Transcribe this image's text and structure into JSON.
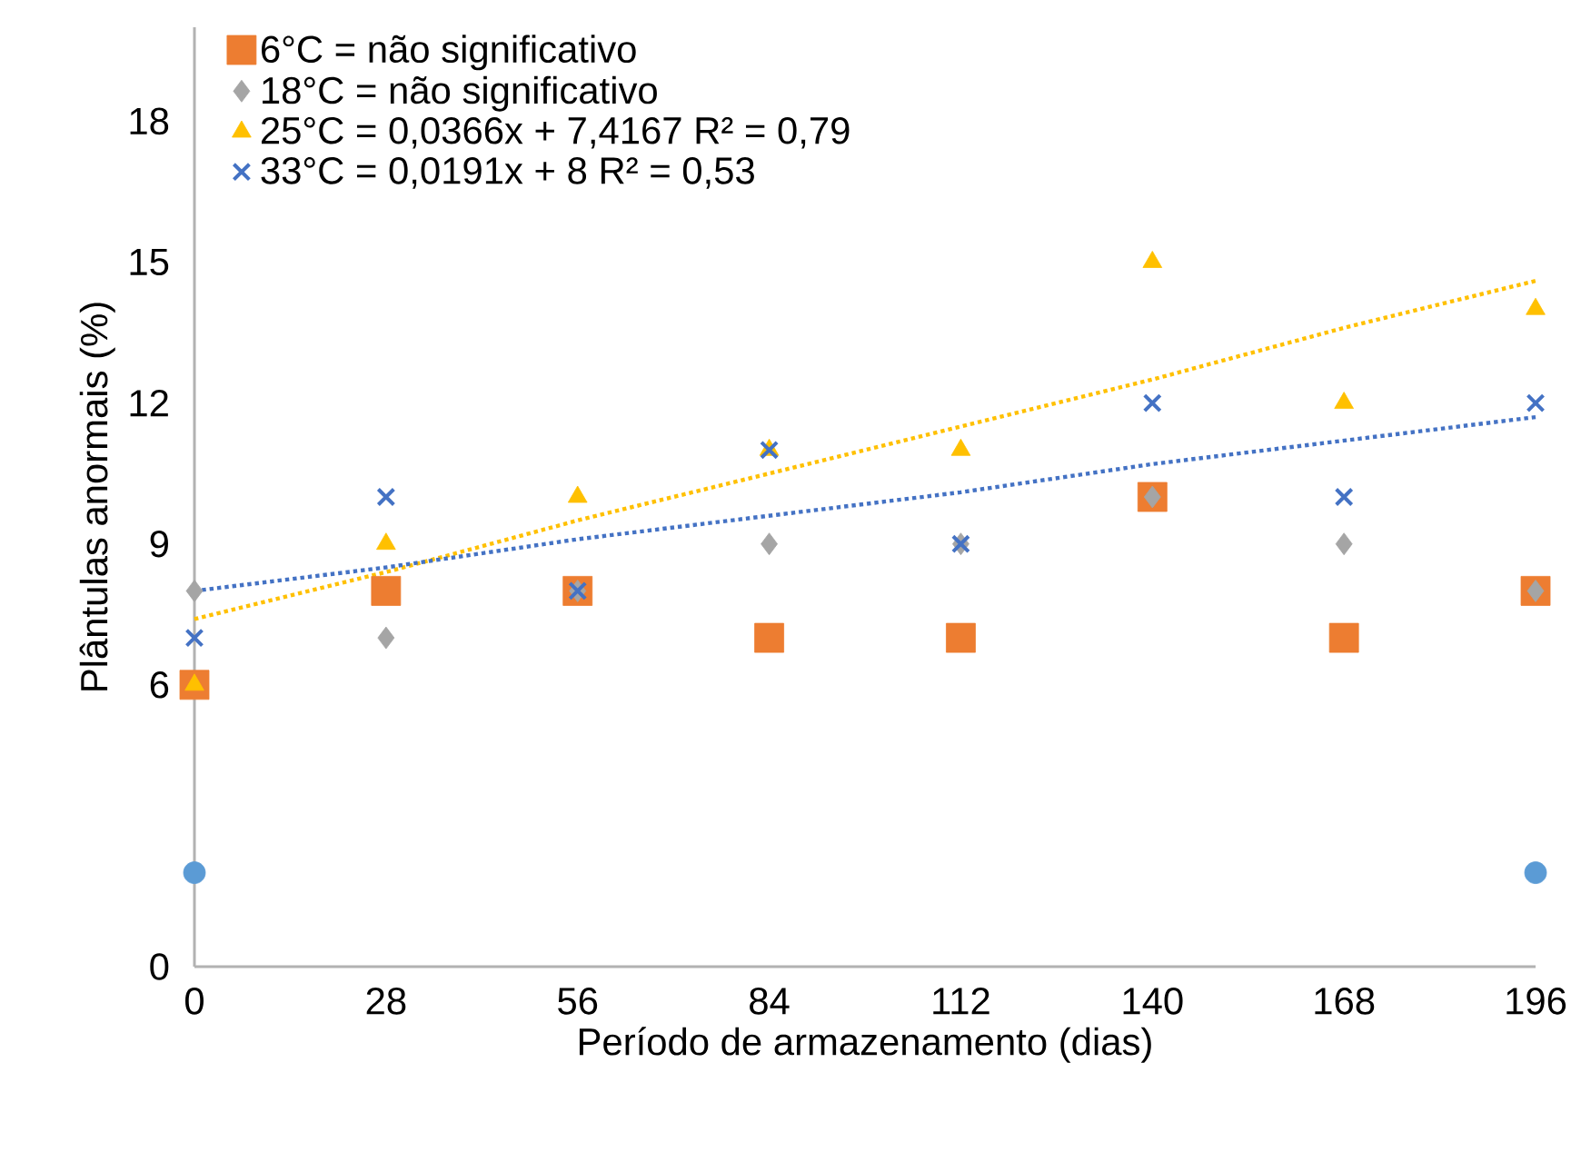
{
  "chart_data": {
    "type": "scatter",
    "xlabel": "Período de armazenamento  (dias)",
    "ylabel": "Plântulas anormais (%)",
    "x": [
      0,
      28,
      56,
      84,
      112,
      140,
      168,
      196
    ],
    "series": [
      {
        "name": "6°C  = não significativo",
        "color": "#ed7d31",
        "marker": "square",
        "values": [
          6,
          8,
          8,
          7,
          7,
          10,
          7,
          8
        ]
      },
      {
        "name": "18°C = não significativo",
        "color": "#a5a5a5",
        "marker": "diamond",
        "values": [
          8,
          7,
          8,
          9,
          9,
          10,
          9,
          8
        ]
      },
      {
        "name": "25°C  = 0,0366x + 7,4167   R² = 0,79",
        "color": "#ffc000",
        "marker": "triangle",
        "values": [
          6,
          9,
          10,
          11,
          11,
          15,
          12,
          14
        ]
      },
      {
        "name": "33°C   = 0,0191x + 8  R² = 0,53",
        "color": "#4472c4",
        "marker": "cross",
        "values": [
          7,
          10,
          8,
          11,
          9,
          12,
          10,
          12
        ]
      },
      {
        "color": "#5b9bd5",
        "marker": "circle",
        "values": [
          2,
          null,
          null,
          null,
          null,
          null,
          null,
          2
        ]
      },
      {
        "type": "line",
        "color": "#ffc000",
        "line_style": "dotted",
        "marker": "none",
        "values": [
          7.4,
          8.4,
          9.5,
          10.5,
          11.5,
          12.5,
          13.6,
          14.6
        ]
      },
      {
        "type": "line",
        "color": "#4472c4",
        "line_style": "dotted",
        "marker": "none",
        "values": [
          8,
          8.5,
          9.1,
          9.6,
          10.1,
          10.7,
          11.2,
          11.7
        ]
      }
    ],
    "xlim": [
      0,
      196
    ],
    "xticks": [
      0,
      28,
      56,
      84,
      112,
      140,
      168,
      196
    ],
    "ylim": [
      0,
      20
    ],
    "yticks": [
      0,
      6,
      9,
      12,
      15,
      18
    ],
    "grid": false,
    "legend": "top left"
  }
}
